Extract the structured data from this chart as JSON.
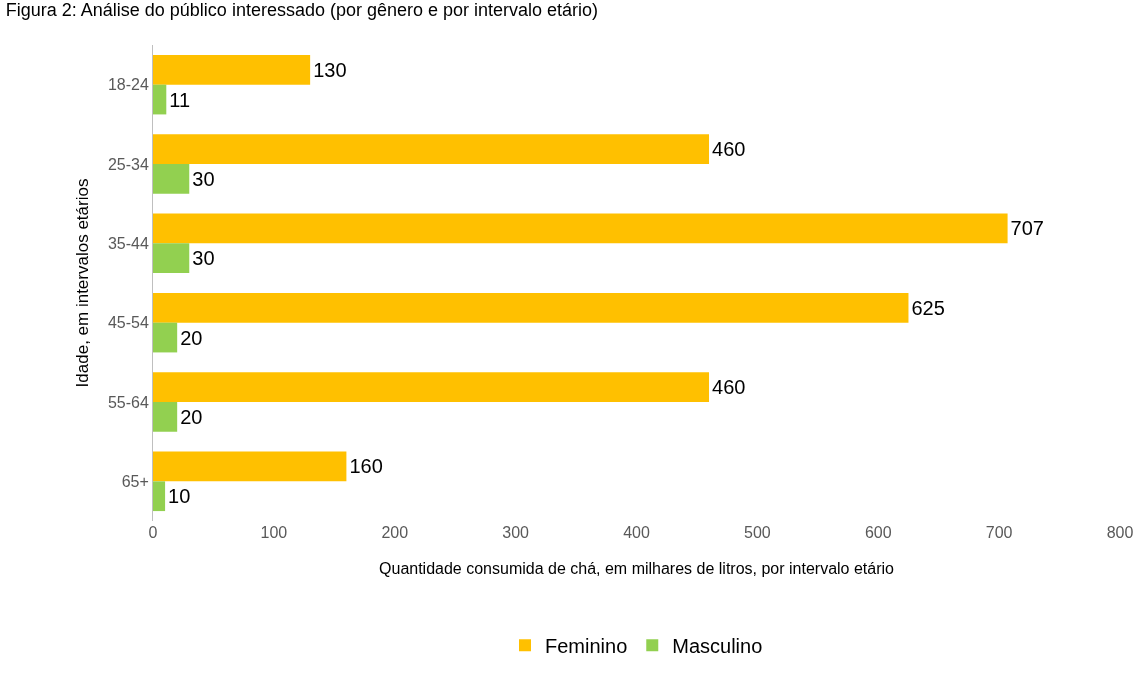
{
  "chart_data": {
    "type": "bar",
    "orientation": "horizontal",
    "title": "Figura 2: Análise do público interessado (por gênero e por intervalo etário)",
    "xlabel": "Quantidade consumida de chá, em milhares de litros, por intervalo etário",
    "ylabel": "Idade, em intervalos etários",
    "categories": [
      "18-24",
      "25-34",
      "35-44",
      "45-54",
      "55-64",
      "65+"
    ],
    "series": [
      {
        "name": "Feminino",
        "color": "#ffc000",
        "values": [
          130,
          460,
          707,
          625,
          460,
          160
        ]
      },
      {
        "name": "Masculino",
        "color": "#92d050",
        "values": [
          11,
          30,
          30,
          20,
          20,
          10
        ]
      }
    ],
    "xlim": [
      0,
      800
    ],
    "xticks": [
      0,
      100,
      200,
      300,
      400,
      500,
      600,
      700,
      800
    ],
    "grid": false,
    "legend": "bottom",
    "data_labels": true
  }
}
